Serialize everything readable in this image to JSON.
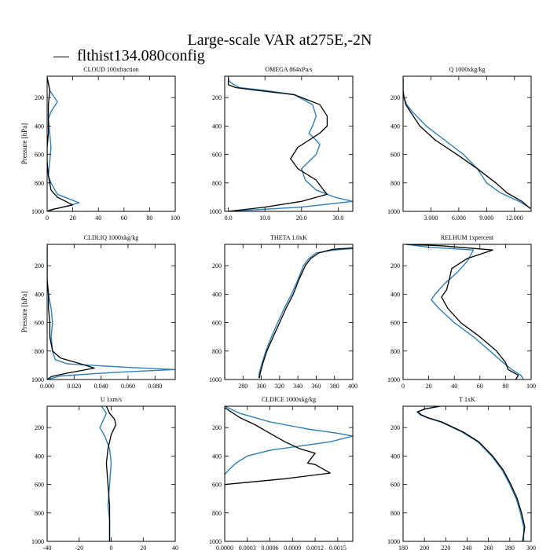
{
  "figure": {
    "title": "Large-scale VAR at275E,-2N",
    "legend_label": "flthist134.080config",
    "legend_color": "#2f7fb5",
    "legend_dash": "—"
  },
  "colors": {
    "reference": "#000000",
    "case": "#2f7fb5"
  },
  "chart_data": [
    {
      "type": "line",
      "title": "CLOUD  100xfraction",
      "ylabel": "Pressure [hPa]",
      "xlim": [
        0,
        100
      ],
      "ylim": [
        1000,
        50
      ],
      "xticks": [
        0,
        20,
        40,
        60,
        80,
        100
      ],
      "xtick_labels": [
        "0",
        "20",
        "40",
        "60",
        "80",
        "100"
      ],
      "yticks": [
        200,
        400,
        600,
        800,
        1000
      ],
      "ytick_labels": [
        "200",
        "400",
        "600",
        "800",
        "1000"
      ],
      "series": [
        {
          "color": "#2f7fb5",
          "x": [
            0,
            1,
            2,
            8,
            3,
            1,
            2,
            3,
            2,
            1,
            3,
            8,
            25,
            10,
            2,
            0
          ],
          "y": [
            60,
            100,
            150,
            230,
            300,
            350,
            450,
            550,
            650,
            750,
            800,
            880,
            940,
            975,
            990,
            1000
          ]
        },
        {
          "color": "#000000",
          "x": [
            0,
            1,
            2,
            1,
            1,
            1,
            0,
            0,
            1,
            3,
            8,
            20,
            5,
            0
          ],
          "y": [
            60,
            100,
            150,
            250,
            350,
            450,
            550,
            650,
            750,
            850,
            900,
            955,
            985,
            1000
          ]
        }
      ]
    },
    {
      "type": "line",
      "title": "OMEGA  864xPa/s",
      "ylabel": "",
      "xlim": [
        -1,
        34
      ],
      "ylim": [
        1000,
        50
      ],
      "xticks": [
        0,
        10,
        20,
        30
      ],
      "xtick_labels": [
        "0.0",
        "10.0",
        "20.0",
        "30.0"
      ],
      "yticks": [
        200,
        400,
        600,
        800,
        1000
      ],
      "ytick_labels": [
        "200",
        "400",
        "600",
        "800",
        "1000"
      ],
      "series": [
        {
          "color": "#2f7fb5",
          "x": [
            0,
            0,
            1,
            3,
            10,
            18,
            23,
            24,
            23,
            22,
            24,
            25,
            24,
            20,
            21,
            24,
            29,
            34,
            20,
            0
          ],
          "y": [
            60,
            80,
            100,
            130,
            150,
            180,
            250,
            330,
            400,
            450,
            500,
            530,
            600,
            700,
            780,
            850,
            900,
            930,
            970,
            1000
          ]
        },
        {
          "color": "#000000",
          "x": [
            0,
            0,
            0,
            2,
            8,
            18,
            25,
            27,
            27,
            25,
            22,
            19,
            17,
            19,
            24,
            26,
            27,
            20,
            10,
            0
          ],
          "y": [
            60,
            80,
            110,
            130,
            150,
            180,
            250,
            330,
            400,
            450,
            500,
            550,
            630,
            700,
            780,
            850,
            880,
            930,
            970,
            1000
          ]
        }
      ]
    },
    {
      "type": "line",
      "title": "Q  1000xkg/kg",
      "ylabel": "",
      "xlim": [
        0,
        13800
      ],
      "ylim": [
        1000,
        50
      ],
      "xticks": [
        3000,
        6000,
        9000,
        12000
      ],
      "xtick_labels": [
        "3.000",
        "6.000",
        "9.000",
        "12.000"
      ],
      "yticks": [
        200,
        400,
        600,
        800,
        1000
      ],
      "ytick_labels": [
        "200",
        "400",
        "600",
        "800",
        "1000"
      ],
      "series": [
        {
          "color": "#2f7fb5",
          "x": [
            0,
            0,
            100,
            400,
            1000,
            2500,
            4500,
            6500,
            8000,
            9000,
            10500,
            12500,
            13800
          ],
          "y": [
            60,
            150,
            200,
            250,
            300,
            400,
            500,
            600,
            700,
            800,
            870,
            930,
            980
          ]
        },
        {
          "color": "#000000",
          "x": [
            0,
            0,
            100,
            300,
            800,
            1800,
            3500,
            5800,
            8000,
            10000,
            11200,
            12800,
            13700
          ],
          "y": [
            60,
            150,
            200,
            250,
            300,
            400,
            500,
            600,
            700,
            800,
            870,
            930,
            980
          ]
        }
      ]
    },
    {
      "type": "line",
      "title": "CLDLIQ  1000xkg/kg",
      "ylabel": "Pressure [hPa]",
      "xlim": [
        0,
        0.095
      ],
      "ylim": [
        1000,
        50
      ],
      "xticks": [
        0,
        0.02,
        0.04,
        0.06,
        0.08
      ],
      "xtick_labels": [
        "0.000",
        "0.020",
        "0.040",
        "0.060",
        "0.080"
      ],
      "yticks": [
        200,
        400,
        600,
        800,
        1000
      ],
      "ytick_labels": [
        "200",
        "400",
        "600",
        "800",
        "1000"
      ],
      "series": [
        {
          "color": "#2f7fb5",
          "x": [
            0,
            0,
            0.001,
            0.003,
            0.004,
            0.003,
            0.004,
            0.006,
            0.015,
            0.06,
            0.095,
            0.05,
            0.01,
            0
          ],
          "y": [
            60,
            300,
            400,
            500,
            600,
            700,
            800,
            860,
            890,
            915,
            930,
            950,
            975,
            1000
          ]
        },
        {
          "color": "#000000",
          "x": [
            0,
            0,
            0.001,
            0.001,
            0.002,
            0.002,
            0.004,
            0.01,
            0.025,
            0.035,
            0.015,
            0.003,
            0
          ],
          "y": [
            60,
            300,
            400,
            500,
            600,
            700,
            800,
            850,
            890,
            920,
            955,
            980,
            1000
          ]
        }
      ]
    },
    {
      "type": "line",
      "title": "THETA  1.0xK",
      "ylabel": "",
      "xlim": [
        260,
        400
      ],
      "ylim": [
        1000,
        50
      ],
      "xticks": [
        280,
        300,
        320,
        340,
        360,
        380,
        400
      ],
      "xtick_labels": [
        "280",
        "300",
        "320",
        "340",
        "360",
        "380",
        "400"
      ],
      "yticks": [
        200,
        400,
        600,
        800,
        1000
      ],
      "ytick_labels": [
        "200",
        "400",
        "600",
        "800",
        "1000"
      ],
      "series": [
        {
          "color": "#2f7fb5",
          "x": [
            400,
            380,
            360,
            352,
            346,
            340,
            333,
            325,
            318,
            311,
            305,
            301,
            298,
            297
          ],
          "y": [
            80,
            90,
            110,
            150,
            200,
            300,
            400,
            500,
            600,
            700,
            800,
            880,
            950,
            990
          ]
        },
        {
          "color": "#000000",
          "x": [
            400,
            378,
            363,
            354,
            348,
            341,
            335,
            327,
            320,
            313,
            306,
            302,
            299,
            298
          ],
          "y": [
            75,
            85,
            110,
            150,
            200,
            300,
            400,
            500,
            600,
            700,
            800,
            880,
            950,
            990
          ]
        }
      ]
    },
    {
      "type": "line",
      "title": "RELHUM  1xpercent",
      "ylabel": "",
      "xlim": [
        0,
        100
      ],
      "ylim": [
        1000,
        50
      ],
      "xticks": [
        0,
        20,
        40,
        60,
        80,
        100
      ],
      "xtick_labels": [
        "0",
        "20",
        "40",
        "60",
        "80",
        "100"
      ],
      "yticks": [
        200,
        400,
        600,
        800,
        1000
      ],
      "ytick_labels": [
        "200",
        "400",
        "600",
        "800",
        "1000"
      ],
      "series": [
        {
          "color": "#2f7fb5",
          "x": [
            2,
            20,
            55,
            50,
            42,
            32,
            25,
            22,
            28,
            40,
            55,
            68,
            78,
            85,
            92,
            94
          ],
          "y": [
            50,
            70,
            90,
            170,
            250,
            330,
            400,
            440,
            500,
            600,
            700,
            800,
            880,
            930,
            970,
            1000
          ]
        },
        {
          "color": "#000000",
          "x": [
            2,
            30,
            70,
            50,
            38,
            36,
            34,
            30,
            35,
            45,
            60,
            73,
            80,
            82,
            90,
            88
          ],
          "y": [
            50,
            60,
            90,
            150,
            220,
            300,
            370,
            420,
            500,
            600,
            700,
            800,
            880,
            930,
            970,
            1000
          ]
        }
      ]
    },
    {
      "type": "line",
      "title": "U  1xm/s",
      "ylabel": "",
      "xlim": [
        -40,
        40
      ],
      "ylim": [
        1000,
        50
      ],
      "xticks": [
        -40,
        -20,
        0,
        20,
        40
      ],
      "xtick_labels": [
        "-40",
        "-20",
        "0",
        "20",
        "40"
      ],
      "yticks": [
        200,
        400,
        600,
        800,
        1000
      ],
      "ytick_labels": [
        "200",
        "400",
        "600",
        "800",
        "1000"
      ],
      "series": [
        {
          "color": "#2f7fb5",
          "x": [
            -6,
            -3,
            -5,
            -7,
            -4,
            -1,
            0,
            -1,
            -2,
            -1,
            -1,
            -1
          ],
          "y": [
            50,
            100,
            150,
            200,
            260,
            350,
            450,
            600,
            750,
            850,
            950,
            1000
          ]
        },
        {
          "color": "#000000",
          "x": [
            -3,
            -1,
            2,
            3,
            0,
            -2,
            -3,
            -2,
            -1,
            -1,
            -1,
            -1
          ],
          "y": [
            50,
            100,
            140,
            180,
            250,
            350,
            450,
            600,
            750,
            850,
            950,
            1000
          ]
        }
      ]
    },
    {
      "type": "line",
      "title": "CLDICE  1000xkg/kg",
      "ylabel": "",
      "xlim": [
        0,
        0.0017
      ],
      "ylim": [
        1000,
        50
      ],
      "xticks": [
        0,
        0.0003,
        0.0006,
        0.0009,
        0.0012,
        0.0015
      ],
      "xtick_labels": [
        "0.0000",
        "0.0003",
        "0.0006",
        "0.0009",
        "0.0012",
        "0.0015"
      ],
      "yticks": [
        200,
        400,
        600,
        800,
        1000
      ],
      "ytick_labels": [
        "200",
        "400",
        "600",
        "800",
        "1000"
      ],
      "series": [
        {
          "color": "#2f7fb5",
          "x": [
            0,
            0.0002,
            0.0006,
            0.0011,
            0.0015,
            0.0017,
            0.0014,
            0.001,
            0.0006,
            0.0003,
            0.00015,
            5e-05,
            0
          ],
          "y": [
            50,
            100,
            160,
            210,
            240,
            260,
            300,
            330,
            360,
            400,
            450,
            500,
            530
          ]
        },
        {
          "color": "#000000",
          "x": [
            0,
            0.0002,
            0.0004,
            0.0006,
            0.0008,
            0.001,
            0.0012,
            0.0011,
            0.0012,
            0.0014,
            0.0008,
            0.0002,
            0,
            0
          ],
          "y": [
            60,
            130,
            180,
            240,
            300,
            350,
            380,
            450,
            460,
            520,
            560,
            590,
            600,
            620
          ]
        }
      ]
    },
    {
      "type": "line",
      "title": "T  1xK",
      "ylabel": "",
      "xlim": [
        180,
        300
      ],
      "ylim": [
        1000,
        50
      ],
      "xticks": [
        180,
        200,
        220,
        240,
        260,
        280,
        300
      ],
      "xtick_labels": [
        "180",
        "200",
        "220",
        "240",
        "260",
        "280",
        "300"
      ],
      "yticks": [
        200,
        400,
        600,
        800,
        1000
      ],
      "ytick_labels": [
        "200",
        "400",
        "600",
        "800",
        "1000"
      ],
      "series": [
        {
          "color": "#2f7fb5",
          "x": [
            215,
            200,
            193,
            196,
            202,
            215,
            235,
            250,
            263,
            273,
            280,
            286,
            290,
            293,
            293
          ],
          "y": [
            50,
            70,
            90,
            110,
            130,
            160,
            230,
            300,
            400,
            500,
            600,
            700,
            800,
            900,
            1000
          ]
        },
        {
          "color": "#000000",
          "x": [
            214,
            200,
            194,
            197,
            203,
            216,
            236,
            251,
            264,
            274,
            281,
            287,
            291,
            294,
            292
          ],
          "y": [
            50,
            70,
            90,
            110,
            130,
            160,
            230,
            300,
            400,
            500,
            600,
            700,
            800,
            900,
            1000
          ]
        }
      ]
    }
  ]
}
